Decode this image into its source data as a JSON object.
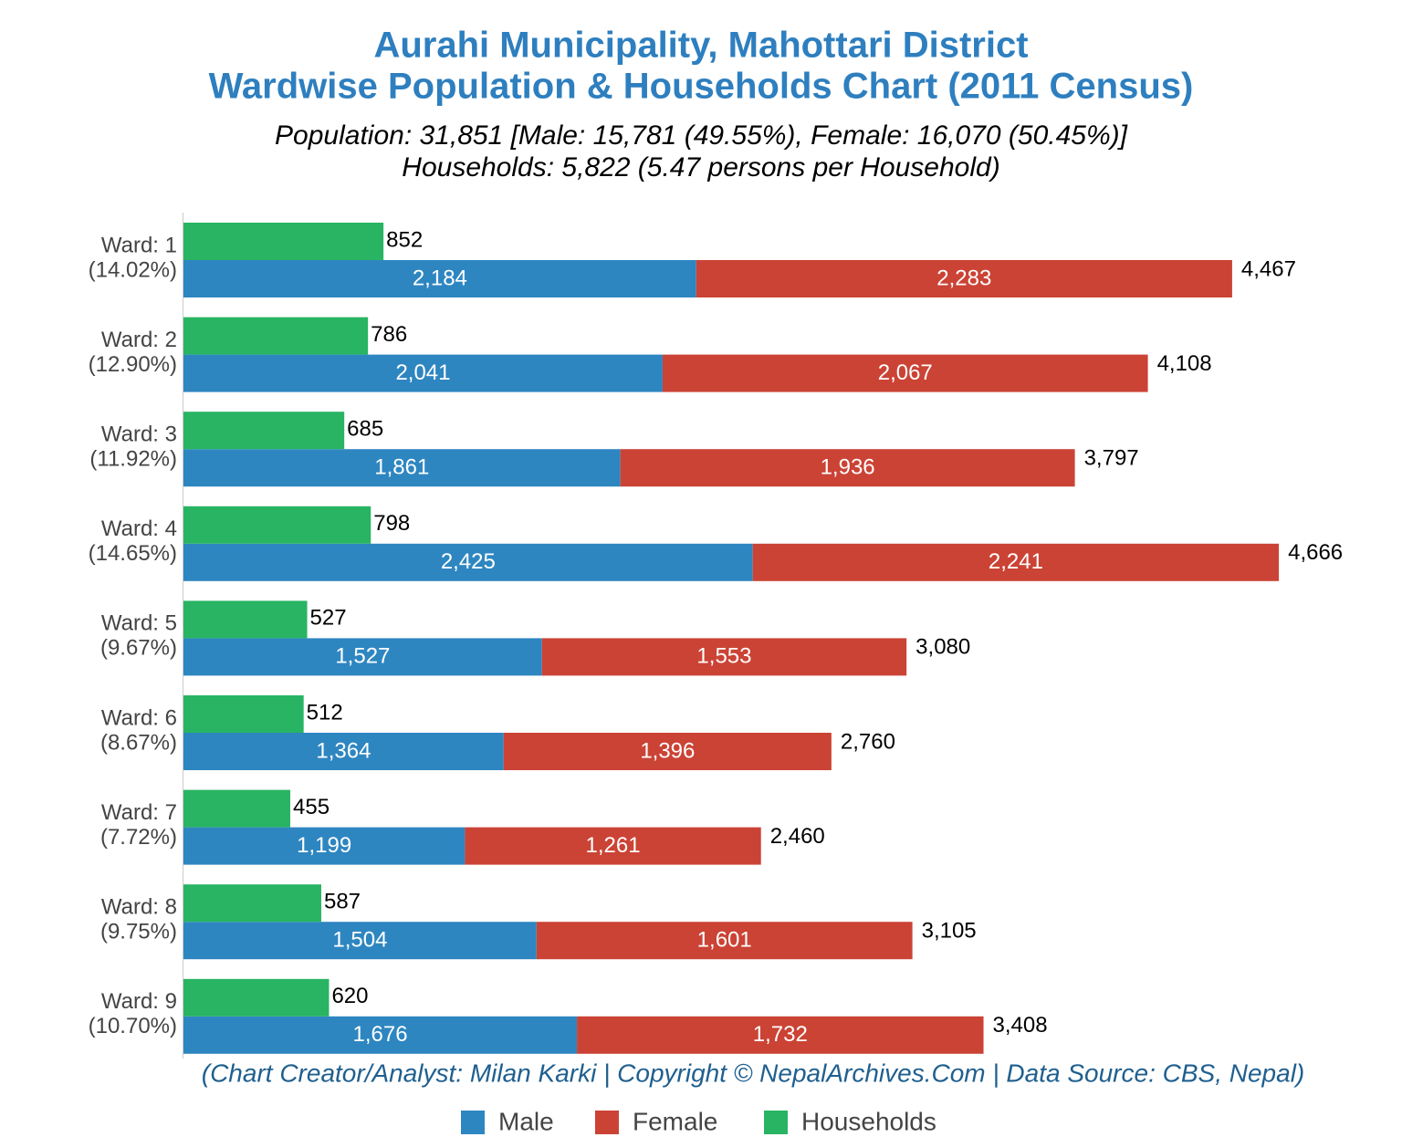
{
  "chart_data": {
    "type": "bar",
    "orientation": "horizontal",
    "title": [
      "Aurahi Municipality, Mahottari District",
      "Wardwise Population & Households Chart (2011 Census)"
    ],
    "subtitle": [
      "Population: 31,851 [Male: 15,781 (49.55%), Female: 16,070 (50.45%)]",
      "Households: 5,822 (5.47 persons per Household)"
    ],
    "caption": "(Chart Creator/Analyst: Milan Karki | Copyright © NepalArchives.Com | Data Source: CBS, Nepal)",
    "categories": [
      "Ward: 1",
      "Ward: 2",
      "Ward: 3",
      "Ward: 4",
      "Ward: 5",
      "Ward: 6",
      "Ward: 7",
      "Ward: 8",
      "Ward: 9"
    ],
    "category_shares": [
      "(14.02%)",
      "(12.90%)",
      "(11.92%)",
      "(14.65%)",
      "(9.67%)",
      "(8.67%)",
      "(7.72%)",
      "(9.75%)",
      "(10.70%)"
    ],
    "xlim": [
      0,
      5000
    ],
    "series": [
      {
        "name": "Male",
        "color": "#2e86c1",
        "stack": "population",
        "label_color": "#ffffff",
        "values": [
          2184,
          2041,
          1861,
          2425,
          1527,
          1364,
          1199,
          1504,
          1676
        ],
        "value_labels": [
          "2,184",
          "2,041",
          "1,861",
          "2,425",
          "1,527",
          "1,364",
          "1,199",
          "1,504",
          "1,676"
        ]
      },
      {
        "name": "Female",
        "color": "#cb4335",
        "stack": "population",
        "label_color": "#ffffff",
        "values": [
          2283,
          2067,
          1936,
          2241,
          1553,
          1396,
          1261,
          1601,
          1732
        ],
        "value_labels": [
          "2,283",
          "2,067",
          "1,936",
          "2,241",
          "1,553",
          "1,396",
          "1,261",
          "1,601",
          "1,732"
        ]
      },
      {
        "name": "Households",
        "color": "#28b463",
        "stack": "households",
        "label_color": "#000000",
        "values": [
          852,
          786,
          685,
          798,
          527,
          512,
          455,
          587,
          620
        ],
        "value_labels": [
          "852",
          "786",
          "685",
          "798",
          "527",
          "512",
          "455",
          "587",
          "620"
        ]
      }
    ],
    "totals": [
      4467,
      4108,
      3797,
      4666,
      3080,
      2760,
      2460,
      3105,
      3408
    ],
    "total_labels": [
      "4,467",
      "4,108",
      "3,797",
      "4,666",
      "3,080",
      "2,760",
      "2,460",
      "3,105",
      "3,408"
    ],
    "legend": "bottom"
  }
}
